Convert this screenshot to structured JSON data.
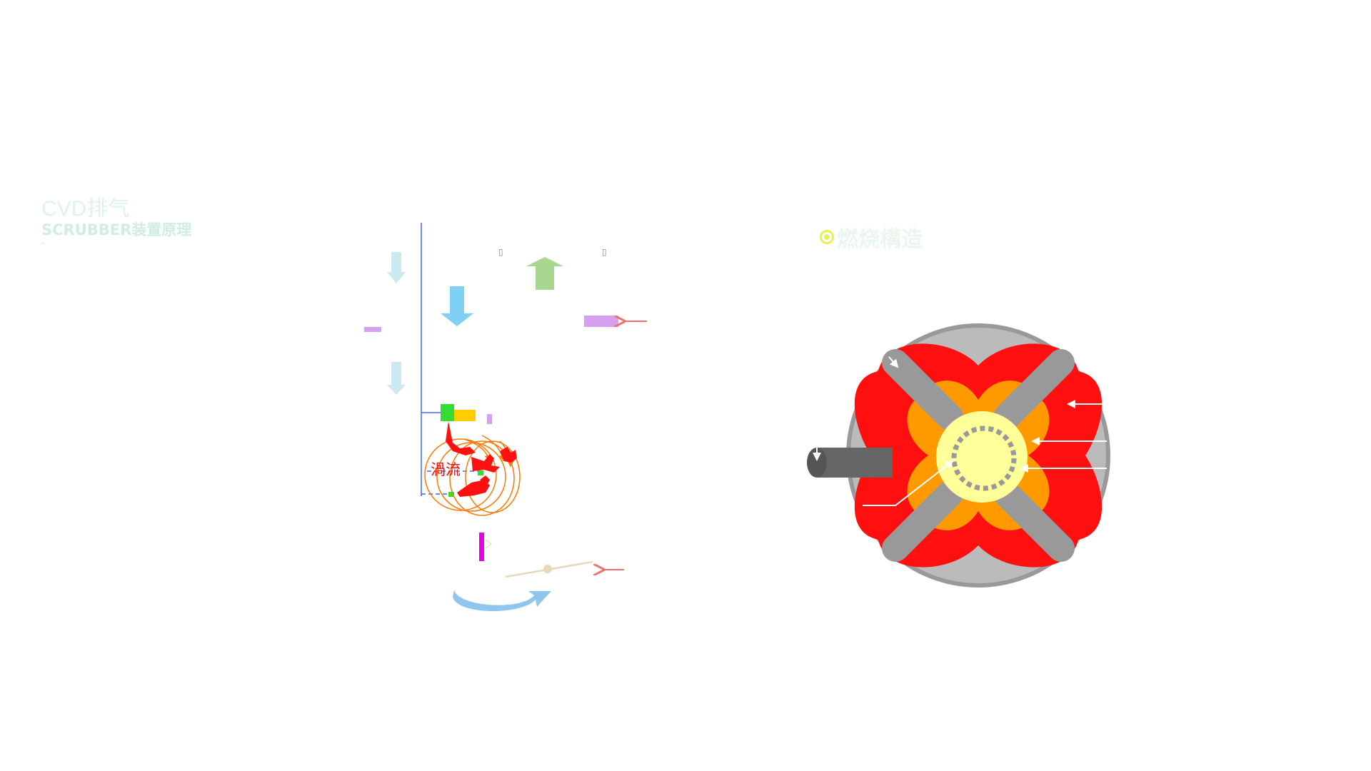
{
  "title": {
    "main": "CVD排气",
    "sub": "SCRUBBER装置原理",
    "dash": "-"
  },
  "section": {
    "label": "燃烧構造"
  },
  "scrubber": {
    "vortex_label": "渦流",
    "box_glyph_1": "▯",
    "box_glyph_2": "▯"
  },
  "colors": {
    "flame": "#ff1010",
    "orange": "#ff9900",
    "core": "#ffff99",
    "shell": "#bbbbbb",
    "pipe": "#999999",
    "arrow_light_blue": "#cce8f0",
    "arrow_blue": "#7fd0f5",
    "arrow_green": "#a8d890",
    "purple": "#d5a0ee",
    "magenta": "#e600e6",
    "line_blue": "#4466ee",
    "green_block": "#33dd33",
    "yellow_block": "#ffcc00",
    "rotate_arrow": "#8ec6ee",
    "title_green": "#dff4e8",
    "icon_yellow": "#e3f25a"
  }
}
